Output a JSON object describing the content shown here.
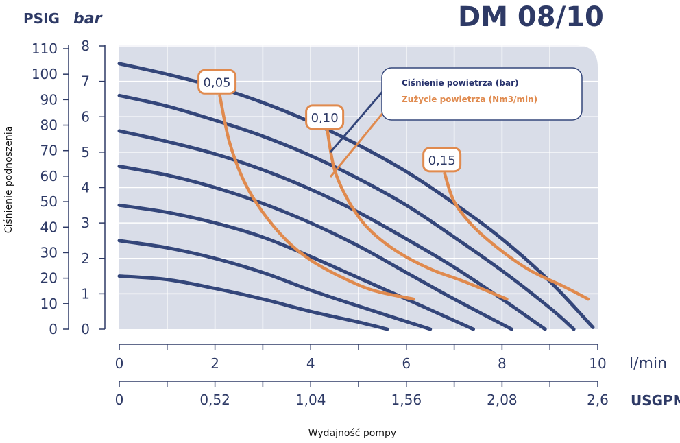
{
  "title": "DM 08/10",
  "units": {
    "psig": "PSIG",
    "bar": "bar",
    "lmin": "l/min",
    "usgpm": "USGPM"
  },
  "ylabel": "Ciśnienie podnoszenia",
  "xlabel": "Wydajność pompy",
  "legend": {
    "pressure": "Ciśnienie powietrza (bar)",
    "consumption": "Zużycie powietrza (Nm3/min)"
  },
  "colors": {
    "pressure": "#34467a",
    "consumption": "#e08a4e",
    "plot_bg": "#d9dde8",
    "grid": "#ffffff",
    "text": "#2e3a66"
  },
  "chart_data": {
    "type": "line",
    "title": "DM 08/10",
    "xlabel": "Wydajność pompy",
    "ylabel": "Ciśnienie podnoszenia",
    "xlim": [
      0,
      10
    ],
    "ylim": [
      0,
      8
    ],
    "x_ticks_lmin": [
      "0",
      "2",
      "4",
      "6",
      "8",
      "10"
    ],
    "x_ticks_usgpm": [
      "0",
      "0,52",
      "1,04",
      "1,56",
      "2,08",
      "2,6"
    ],
    "y_ticks_bar": [
      "0",
      "1",
      "2",
      "3",
      "4",
      "5",
      "6",
      "7",
      "8"
    ],
    "y_ticks_psig": [
      "0",
      "10",
      "20",
      "30",
      "40",
      "50",
      "60",
      "70",
      "80",
      "90",
      "100",
      "110"
    ],
    "grid": true,
    "legend_position": "top-right",
    "pressure_series": [
      {
        "points": [
          [
            0,
            1.5
          ],
          [
            1,
            1.4
          ],
          [
            2,
            1.15
          ],
          [
            3,
            0.85
          ],
          [
            4,
            0.5
          ],
          [
            5,
            0.2
          ],
          [
            5.6,
            0
          ]
        ]
      },
      {
        "points": [
          [
            0,
            2.5
          ],
          [
            1,
            2.3
          ],
          [
            2,
            2.0
          ],
          [
            3,
            1.6
          ],
          [
            4,
            1.1
          ],
          [
            5,
            0.65
          ],
          [
            6.5,
            0
          ]
        ]
      },
      {
        "points": [
          [
            0,
            3.5
          ],
          [
            1,
            3.3
          ],
          [
            2,
            3.0
          ],
          [
            3,
            2.6
          ],
          [
            4,
            2.05
          ],
          [
            5,
            1.45
          ],
          [
            6,
            0.85
          ],
          [
            7.4,
            0
          ]
        ]
      },
      {
        "points": [
          [
            0,
            4.6
          ],
          [
            1,
            4.35
          ],
          [
            2,
            4.0
          ],
          [
            3,
            3.55
          ],
          [
            4,
            3.0
          ],
          [
            5,
            2.35
          ],
          [
            6,
            1.6
          ],
          [
            7,
            0.85
          ],
          [
            8.2,
            0
          ]
        ]
      },
      {
        "points": [
          [
            0,
            5.6
          ],
          [
            1,
            5.3
          ],
          [
            2,
            4.95
          ],
          [
            3,
            4.5
          ],
          [
            4,
            3.95
          ],
          [
            5,
            3.3
          ],
          [
            6,
            2.55
          ],
          [
            7,
            1.75
          ],
          [
            8,
            0.85
          ],
          [
            8.9,
            0
          ]
        ]
      },
      {
        "points": [
          [
            0,
            6.6
          ],
          [
            1,
            6.3
          ],
          [
            2,
            5.9
          ],
          [
            3,
            5.45
          ],
          [
            4,
            4.9
          ],
          [
            5,
            4.25
          ],
          [
            6,
            3.5
          ],
          [
            7,
            2.6
          ],
          [
            8,
            1.65
          ],
          [
            9,
            0.6
          ],
          [
            9.5,
            0
          ]
        ]
      },
      {
        "points": [
          [
            0,
            7.5
          ],
          [
            1,
            7.2
          ],
          [
            2,
            6.85
          ],
          [
            3,
            6.4
          ],
          [
            4,
            5.85
          ],
          [
            5,
            5.2
          ],
          [
            6,
            4.45
          ],
          [
            7,
            3.55
          ],
          [
            8,
            2.55
          ],
          [
            9,
            1.35
          ],
          [
            9.9,
            0.05
          ]
        ]
      }
    ],
    "consumption_series": [
      {
        "name": "0,05",
        "points": [
          [
            2.1,
            6.6
          ],
          [
            2.3,
            5.3
          ],
          [
            2.6,
            4.2
          ],
          [
            3.0,
            3.3
          ],
          [
            3.5,
            2.5
          ],
          [
            4.0,
            1.95
          ],
          [
            4.6,
            1.5
          ],
          [
            5.3,
            1.1
          ],
          [
            6.15,
            0.85
          ]
        ]
      },
      {
        "name": "0,10",
        "points": [
          [
            4.35,
            5.6
          ],
          [
            4.5,
            4.5
          ],
          [
            4.8,
            3.6
          ],
          [
            5.2,
            2.85
          ],
          [
            5.8,
            2.2
          ],
          [
            6.5,
            1.7
          ],
          [
            7.2,
            1.35
          ],
          [
            8.1,
            0.85
          ]
        ]
      },
      {
        "name": "0,15",
        "points": [
          [
            6.8,
            4.4
          ],
          [
            7.0,
            3.6
          ],
          [
            7.4,
            2.9
          ],
          [
            8.0,
            2.2
          ],
          [
            8.6,
            1.65
          ],
          [
            9.3,
            1.2
          ],
          [
            9.8,
            0.85
          ]
        ]
      }
    ]
  }
}
